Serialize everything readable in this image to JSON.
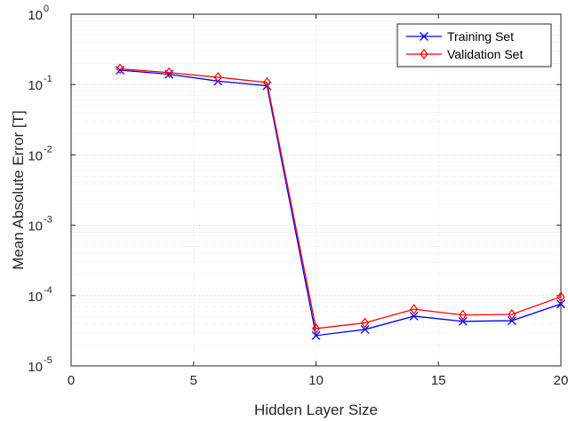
{
  "chart_data": {
    "type": "line",
    "xlabel": "Hidden Layer Size",
    "ylabel": "Mean Absolute Error [T]",
    "x_scale": "linear",
    "y_scale": "log",
    "xlim": [
      0,
      20
    ],
    "ylim": [
      1e-05,
      1
    ],
    "x_ticks": [
      0,
      5,
      10,
      15,
      20
    ],
    "x_tick_labels": [
      "0",
      "5",
      "10",
      "15",
      "20"
    ],
    "y_ticks": [
      1e-05,
      0.0001,
      0.001,
      0.01,
      0.1,
      1
    ],
    "y_tick_labels": [
      {
        "base": "10",
        "exp": "-5"
      },
      {
        "base": "10",
        "exp": "-4"
      },
      {
        "base": "10",
        "exp": "-3"
      },
      {
        "base": "10",
        "exp": "-2"
      },
      {
        "base": "10",
        "exp": "-1"
      },
      {
        "base": "10",
        "exp": "0"
      }
    ],
    "grid": true,
    "legend_position": "top-right",
    "series": [
      {
        "name": "Training Set",
        "color": "#0000ff",
        "marker": "x",
        "x": [
          2,
          4,
          6,
          8,
          10,
          12,
          14,
          16,
          18,
          20
        ],
        "y": [
          0.16,
          0.14,
          0.112,
          0.096,
          2.7e-05,
          3.3e-05,
          5.1e-05,
          4.3e-05,
          4.4e-05,
          7.6e-05
        ]
      },
      {
        "name": "Validation Set",
        "color": "#ff0000",
        "marker": "diamond",
        "x": [
          2,
          4,
          6,
          8,
          10,
          12,
          14,
          16,
          18,
          20
        ],
        "y": [
          0.167,
          0.148,
          0.127,
          0.107,
          3.4e-05,
          4.1e-05,
          6.4e-05,
          5.3e-05,
          5.4e-05,
          9.6e-05
        ]
      }
    ]
  }
}
